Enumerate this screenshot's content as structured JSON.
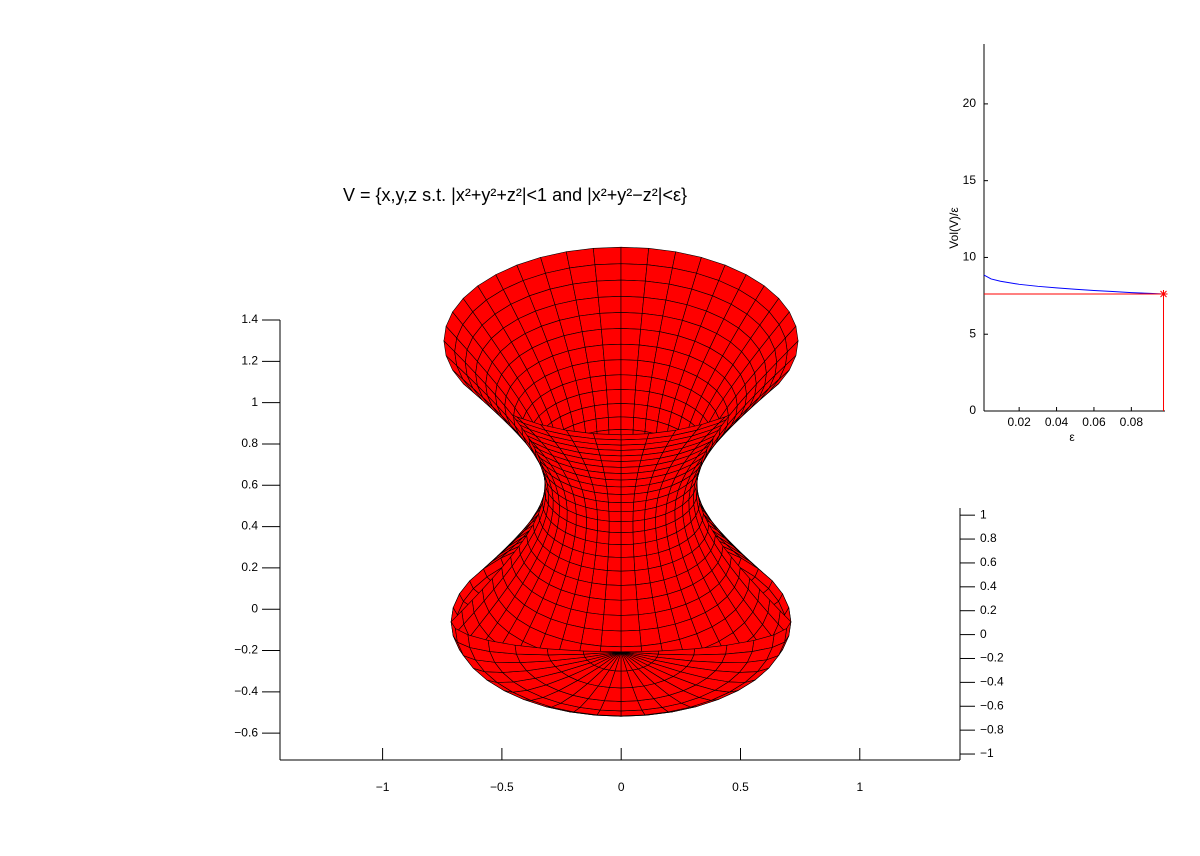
{
  "chart_data": [
    {
      "type": "surface",
      "title": "V = {x,y,z s.t. |x²+y²+z²|<1 and |x²+y²−z²|<ε}",
      "color": "#ff0000",
      "xlim": [
        -1.43,
        1.42
      ],
      "xticks": [
        {
          "value": -1,
          "label": "−1"
        },
        {
          "value": -0.5,
          "label": "−0.5"
        },
        0,
        0.5,
        1
      ],
      "ylim": [
        -0.73,
        1.4
      ],
      "yticks": [
        {
          "value": -0.6,
          "label": "−0.6"
        },
        {
          "value": -0.4,
          "label": "−0.4"
        },
        {
          "value": -0.2,
          "label": "−0.2"
        },
        0,
        0.2,
        0.4,
        0.6,
        0.8,
        1,
        1.2,
        1.4
      ],
      "y2lim": [
        -1.05,
        1.06
      ],
      "y2ticks": [
        {
          "value": -1,
          "label": "−1"
        },
        {
          "value": -0.8,
          "label": "−0.8"
        },
        {
          "value": -0.6,
          "label": "−0.6"
        },
        {
          "value": -0.4,
          "label": "−0.4"
        },
        {
          "value": -0.2,
          "label": "−0.2"
        },
        0,
        0.2,
        0.4,
        0.6,
        0.8,
        1
      ]
    },
    {
      "type": "line",
      "xlabel": "ε",
      "ylabel": "Vol(V)/ε",
      "x": [
        0.0012,
        0.005,
        0.01,
        0.02,
        0.03,
        0.04,
        0.05,
        0.06,
        0.07,
        0.08,
        0.09,
        0.097
      ],
      "series": [
        {
          "color": "#0000ff",
          "values": [
            8.85,
            8.6,
            8.45,
            8.25,
            8.12,
            8.02,
            7.93,
            7.85,
            7.78,
            7.71,
            7.66,
            7.62
          ]
        }
      ],
      "marker": {
        "x": 0.0972,
        "y": 7.62,
        "color": "#ff0000"
      },
      "xlim": [
        0.0012,
        0.098
      ],
      "xticks": [
        0.02,
        0.04,
        0.06,
        0.08
      ],
      "ylim": [
        0,
        23.9
      ],
      "yticks": [
        0,
        5,
        10,
        15,
        20
      ]
    }
  ]
}
